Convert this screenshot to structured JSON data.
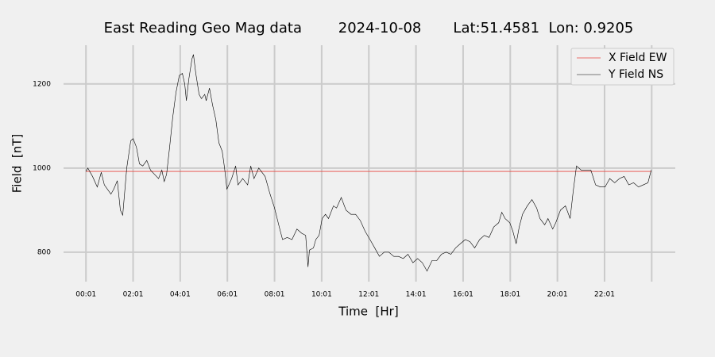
{
  "chart_data": {
    "type": "line",
    "title": "East Reading Geo Mag data        2024-10-08       Lat:51.4581  Lon: 0.9205",
    "xlabel": "Time  [Hr]",
    "ylabel": "Field  [nT]",
    "xlim": [
      -0.93,
      25.02
    ],
    "ylim": [
      730,
      1292
    ],
    "xticks": [
      {
        "value": 0.02,
        "label": "00:01"
      },
      {
        "value": 2.02,
        "label": "02:01"
      },
      {
        "value": 4.02,
        "label": "04:01"
      },
      {
        "value": 6.02,
        "label": "06:01"
      },
      {
        "value": 8.02,
        "label": "08:01"
      },
      {
        "value": 10.02,
        "label": "10:01"
      },
      {
        "value": 12.02,
        "label": "12:01"
      },
      {
        "value": 14.02,
        "label": "14:01"
      },
      {
        "value": 16.02,
        "label": "16:01"
      },
      {
        "value": 18.02,
        "label": "18:01"
      },
      {
        "value": 20.02,
        "label": "20:01"
      },
      {
        "value": 22.02,
        "label": "22:01"
      },
      {
        "value": 24.02,
        "label": null
      }
    ],
    "yticks": [
      800,
      1000,
      1200
    ],
    "grid": true,
    "legend": "upper right",
    "series": [
      {
        "name": "X Field EW",
        "color": "#e8473f",
        "x": [
          0.02,
          24.0
        ],
        "values": [
          992,
          992
        ]
      },
      {
        "name": "Y Field NS",
        "color": "#000000",
        "x": [
          0.02,
          0.1,
          0.3,
          0.5,
          0.67,
          0.8,
          1.08,
          1.2,
          1.35,
          1.48,
          1.58,
          1.75,
          1.92,
          2.02,
          2.16,
          2.29,
          2.43,
          2.6,
          2.76,
          2.93,
          3.1,
          3.24,
          3.34,
          3.44,
          3.57,
          3.7,
          3.84,
          3.98,
          4.11,
          4.21,
          4.28,
          4.38,
          4.52,
          4.58,
          4.68,
          4.82,
          4.92,
          5.06,
          5.12,
          5.26,
          5.39,
          5.53,
          5.66,
          5.8,
          5.9,
          6.0,
          6.2,
          6.37,
          6.47,
          6.67,
          6.88,
          7.01,
          7.15,
          7.35,
          7.62,
          7.82,
          8.02,
          8.22,
          8.36,
          8.56,
          8.76,
          8.97,
          9.17,
          9.34,
          9.44,
          9.5,
          9.67,
          9.77,
          9.91,
          10.04,
          10.18,
          10.31,
          10.52,
          10.65,
          10.85,
          11.05,
          11.26,
          11.46,
          11.66,
          11.86,
          12.07,
          12.27,
          12.47,
          12.67,
          12.87,
          13.08,
          13.28,
          13.48,
          13.68,
          13.89,
          14.09,
          14.29,
          14.49,
          14.7,
          14.9,
          15.1,
          15.3,
          15.5,
          15.7,
          15.9,
          16.11,
          16.31,
          16.51,
          16.72,
          16.92,
          17.12,
          17.32,
          17.53,
          17.66,
          17.8,
          18.0,
          18.13,
          18.27,
          18.4,
          18.54,
          18.74,
          18.94,
          19.14,
          19.28,
          19.48,
          19.62,
          19.82,
          19.95,
          20.15,
          20.36,
          20.56,
          20.69,
          20.83,
          21.03,
          21.23,
          21.44,
          21.64,
          21.84,
          22.04,
          22.24,
          22.45,
          22.65,
          22.85,
          23.05,
          23.25,
          23.46,
          23.66,
          23.86,
          24.0
        ],
        "values": [
          992,
          1000,
          980,
          955,
          990,
          960,
          938,
          950,
          970,
          900,
          888,
          1000,
          1065,
          1070,
          1050,
          1010,
          1005,
          1018,
          995,
          985,
          975,
          995,
          968,
          985,
          1050,
          1120,
          1180,
          1220,
          1225,
          1200,
          1160,
          1210,
          1260,
          1270,
          1225,
          1175,
          1165,
          1175,
          1160,
          1190,
          1150,
          1115,
          1060,
          1040,
          1000,
          950,
          975,
          1005,
          960,
          975,
          960,
          1005,
          975,
          1000,
          980,
          940,
          905,
          860,
          830,
          835,
          830,
          855,
          845,
          840,
          765,
          805,
          810,
          830,
          840,
          880,
          890,
          880,
          910,
          905,
          930,
          900,
          890,
          890,
          875,
          850,
          830,
          810,
          790,
          800,
          800,
          790,
          790,
          785,
          795,
          775,
          785,
          775,
          755,
          780,
          780,
          795,
          800,
          795,
          810,
          820,
          830,
          825,
          810,
          830,
          840,
          835,
          860,
          870,
          895,
          880,
          870,
          850,
          820,
          860,
          890,
          910,
          925,
          905,
          880,
          865,
          880,
          855,
          870,
          900,
          910,
          880,
          945,
          1005,
          995,
          995,
          995,
          960,
          955,
          955,
          975,
          965,
          975,
          980,
          960,
          965,
          955,
          960,
          965,
          995
        ]
      }
    ]
  }
}
